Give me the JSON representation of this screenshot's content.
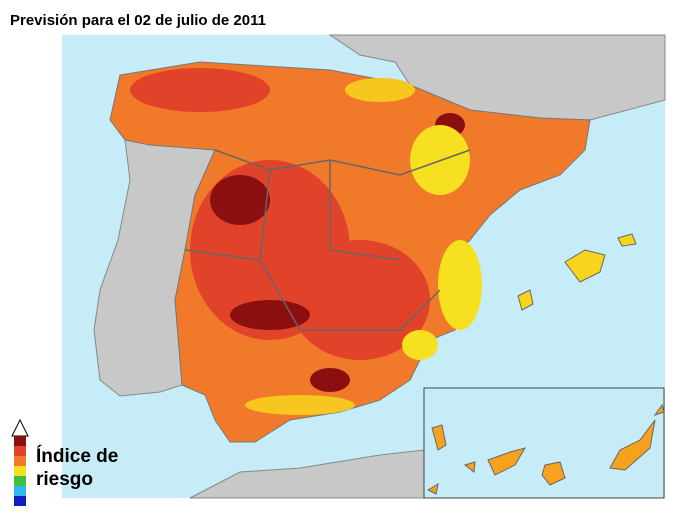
{
  "title": "Previsión para el 02 de julio de 2011",
  "legend": {
    "line1": "Índice de",
    "line2": "riesgo"
  }
}
